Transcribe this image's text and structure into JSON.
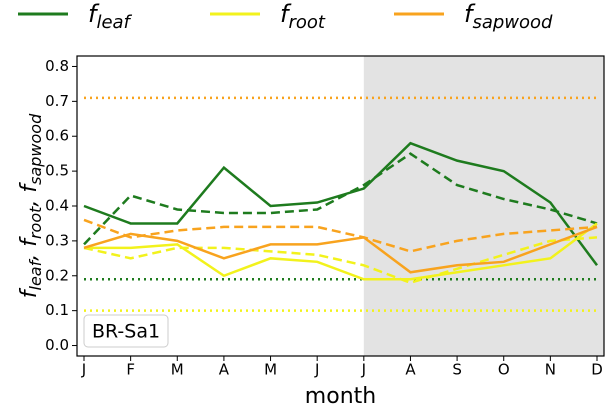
{
  "chart_data": {
    "type": "line",
    "legend_entries": [
      {
        "name": "f",
        "name_sub": "leaf",
        "color": "#1e7b1e"
      },
      {
        "name": "f",
        "name_sub": "root",
        "color": "#f2f21c"
      },
      {
        "name": "f",
        "name_sub": "sapwood",
        "color": "#f8a31e"
      }
    ],
    "ylabel": [
      {
        "text": "f",
        "sub": "leaf"
      },
      {
        "text": ", f",
        "sub": "root"
      },
      {
        "text": ", f",
        "sub": "sapwood"
      }
    ],
    "xlabel": "month",
    "annotation": "BR-Sa1",
    "categories": [
      "J",
      "F",
      "M",
      "A",
      "M",
      "J",
      "J",
      "A",
      "S",
      "O",
      "N",
      "D"
    ],
    "highlight_from_index": 6,
    "series": [
      {
        "color": "#1e7b1e",
        "style": "solid",
        "values": [
          0.4,
          0.35,
          0.35,
          0.51,
          0.4,
          0.41,
          0.45,
          0.58,
          0.53,
          0.5,
          0.41,
          0.23
        ]
      },
      {
        "color": "#1e7b1e",
        "style": "dashed",
        "values": [
          0.29,
          0.43,
          0.39,
          0.38,
          0.38,
          0.39,
          0.46,
          0.55,
          0.46,
          0.42,
          0.39,
          0.35
        ]
      },
      {
        "color": "#1e7b1e",
        "style": "dotted",
        "values": [
          0.19,
          0.19,
          0.19,
          0.19,
          0.19,
          0.19,
          0.19,
          0.19,
          0.19,
          0.19,
          0.19,
          0.19
        ]
      },
      {
        "color": "#f2f21c",
        "style": "solid",
        "values": [
          0.28,
          0.28,
          0.29,
          0.2,
          0.25,
          0.24,
          0.19,
          0.19,
          0.21,
          0.23,
          0.25,
          0.35
        ]
      },
      {
        "color": "#f2f21c",
        "style": "dashed",
        "values": [
          0.28,
          0.25,
          0.28,
          0.28,
          0.27,
          0.26,
          0.23,
          0.18,
          0.22,
          0.26,
          0.3,
          0.31
        ]
      },
      {
        "color": "#f2f21c",
        "style": "dotted",
        "values": [
          0.1,
          0.1,
          0.1,
          0.1,
          0.1,
          0.1,
          0.1,
          0.1,
          0.1,
          0.1,
          0.1,
          0.1
        ]
      },
      {
        "color": "#f8a31e",
        "style": "solid",
        "values": [
          0.28,
          0.32,
          0.3,
          0.25,
          0.29,
          0.29,
          0.31,
          0.21,
          0.23,
          0.24,
          0.29,
          0.34
        ]
      },
      {
        "color": "#f8a31e",
        "style": "dashed",
        "values": [
          0.36,
          0.31,
          0.33,
          0.34,
          0.34,
          0.34,
          0.31,
          0.27,
          0.3,
          0.32,
          0.33,
          0.34
        ]
      },
      {
        "color": "#f8a31e",
        "style": "dotted",
        "values": [
          0.71,
          0.71,
          0.71,
          0.71,
          0.71,
          0.71,
          0.71,
          0.71,
          0.71,
          0.71,
          0.71,
          0.71
        ]
      }
    ],
    "ylim": [
      -0.03,
      0.83
    ],
    "yticks": [
      {
        "value": 0,
        "label": "0.0"
      },
      0.1,
      0.2,
      0.3,
      0.4,
      0.5,
      0.6,
      0.7,
      0.8
    ]
  }
}
